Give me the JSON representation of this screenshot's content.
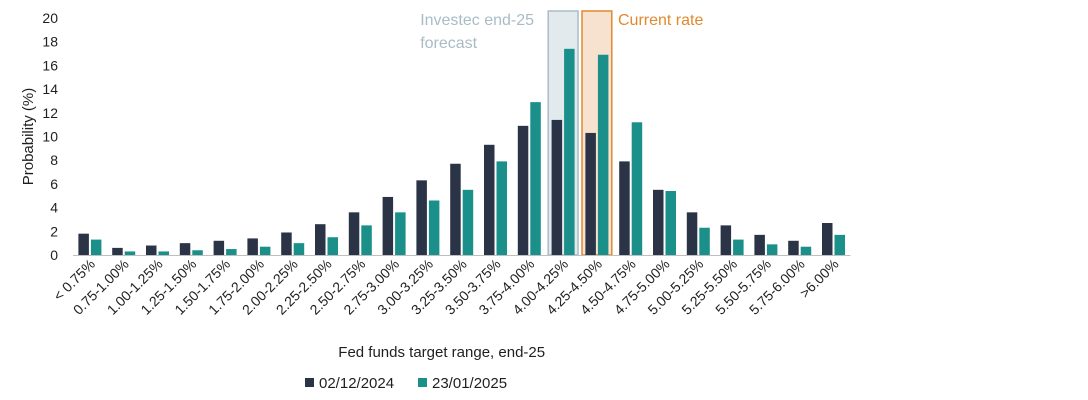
{
  "chart_data": {
    "type": "bar",
    "xlabel": "Fed funds target range, end-25",
    "ylabel": "Probability (%)",
    "ylim": [
      0,
      20
    ],
    "yticks": [
      0,
      2,
      4,
      6,
      8,
      10,
      12,
      14,
      16,
      18,
      20
    ],
    "grid": false,
    "legend_position": "bottom",
    "categories": [
      "< 0.75%",
      "0.75-1.00%",
      "1.00-1.25%",
      "1.25-1.50%",
      "1.50-1.75%",
      "1.75-2.00%",
      "2.00-2.25%",
      "2.25-2.50%",
      "2.50-2.75%",
      "2.75-3.00%",
      "3.00-3.25%",
      "3.25-3.50%",
      "3.50-3.75%",
      "3.75-4.00%",
      "4.00-4.25%",
      "4.25-4.50%",
      "4.50-4.75%",
      "4.75-5.00%",
      "5.00-5.25%",
      "5.25-5.50%",
      "5.50-5.75%",
      "5.75-6.00%",
      ">6.00%"
    ],
    "series": [
      {
        "name": "02/12/2024",
        "color": "#2b3446",
        "values": [
          1.8,
          0.6,
          0.8,
          1.0,
          1.2,
          1.4,
          1.9,
          2.6,
          3.6,
          4.9,
          6.3,
          7.7,
          9.3,
          10.9,
          11.4,
          10.3,
          7.9,
          5.5,
          3.6,
          2.5,
          1.7,
          1.2,
          2.7
        ]
      },
      {
        "name": "23/01/2025",
        "color": "#1b8f8a",
        "values": [
          1.3,
          0.3,
          0.3,
          0.4,
          0.5,
          0.7,
          1.0,
          1.5,
          2.5,
          3.6,
          4.6,
          5.5,
          7.9,
          12.9,
          17.4,
          16.9,
          11.2,
          5.4,
          2.3,
          1.3,
          0.9,
          0.7,
          1.7
        ]
      }
    ],
    "annotations": [
      {
        "text_lines": [
          "Investec end-25",
          "forecast"
        ],
        "category": "4.00-4.25%",
        "color": "#a9bcc6",
        "fill": "#e3eaee"
      },
      {
        "text_lines": [
          "Current rate"
        ],
        "category": "4.25-4.50%",
        "color": "#e08a2e",
        "fill": "#f6e2cf"
      }
    ]
  }
}
